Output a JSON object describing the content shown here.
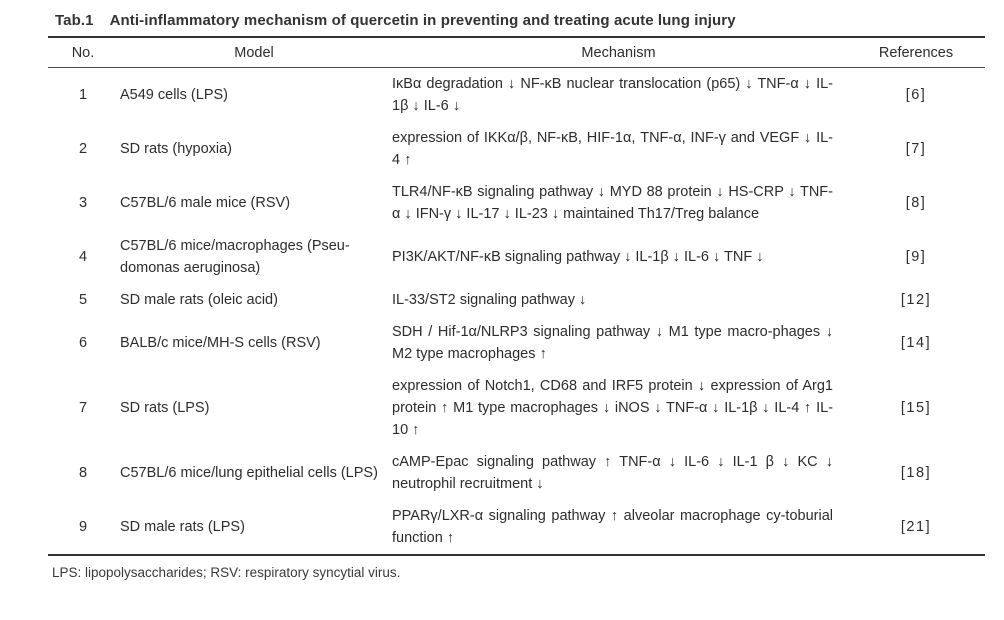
{
  "page": {
    "table_label": "Tab.1",
    "table_title": "Anti-inflammatory mechanism of quercetin in preventing and treating acute lung injury",
    "footnote": "LPS: lipopolysaccharides; RSV: respiratory syncytial virus."
  },
  "colors": {
    "text": "#2d2d2d",
    "rule": "#333333",
    "background": "#ffffff"
  },
  "table": {
    "columns": [
      "No.",
      "Model",
      "Mechanism",
      "References"
    ],
    "rows": [
      {
        "no": "1",
        "model": "A549 cells (LPS)",
        "mechanism": "IκBα degradation ↓ NF-κB nuclear translocation (p65) ↓ TNF-α ↓ IL-1β ↓ IL-6 ↓",
        "reference": "[6]"
      },
      {
        "no": "2",
        "model": "SD rats (hypoxia)",
        "mechanism": "expression of IKKα/β, NF-κB, HIF-1α, TNF-α, INF-γ and VEGF ↓ IL-4 ↑",
        "reference": "[7]"
      },
      {
        "no": "3",
        "model": "C57BL/6 male mice (RSV)",
        "mechanism": "TLR4/NF-κB signaling pathway ↓ MYD 88 protein ↓ HS-CRP ↓ TNF-α ↓ IFN-γ ↓ IL-17 ↓ IL-23 ↓ maintained Th17/Treg balance",
        "reference": "[8]"
      },
      {
        "no": "4",
        "model": "C57BL/6 mice/macrophages (Pseu-domonas aeruginosa)",
        "mechanism": "PI3K/AKT/NF-κB signaling pathway ↓ IL-1β ↓ IL-6 ↓ TNF ↓",
        "reference": "[9]"
      },
      {
        "no": "5",
        "model": "SD male rats (oleic acid)",
        "mechanism": "IL-33/ST2 signaling pathway ↓",
        "reference": "[12]"
      },
      {
        "no": "6",
        "model": "BALB/c mice/MH-S cells (RSV)",
        "mechanism": "SDH / Hif-1α/NLRP3 signaling pathway ↓ M1 type macro-phages ↓ M2 type macrophages ↑",
        "reference": "[14]"
      },
      {
        "no": "7",
        "model": "SD rats (LPS)",
        "mechanism": "expression of Notch1, CD68 and IRF5 protein ↓ expression of Arg1 protein ↑ M1 type macrophages ↓ iNOS ↓ TNF-α ↓ IL-1β ↓ IL-4 ↑ IL-10 ↑",
        "reference": "[15]"
      },
      {
        "no": "8",
        "model": "C57BL/6 mice/lung epithelial cells (LPS)",
        "mechanism": "cAMP-Epac signaling pathway ↑ TNF-α ↓ IL-6 ↓ IL-1 β ↓ KC ↓ neutrophil recruitment ↓",
        "reference": "[18]"
      },
      {
        "no": "9",
        "model": "SD male rats (LPS)",
        "mechanism": "PPARγ/LXR-α signaling pathway ↑ alveolar macrophage cy-toburial function ↑",
        "reference": "[21]"
      }
    ]
  }
}
